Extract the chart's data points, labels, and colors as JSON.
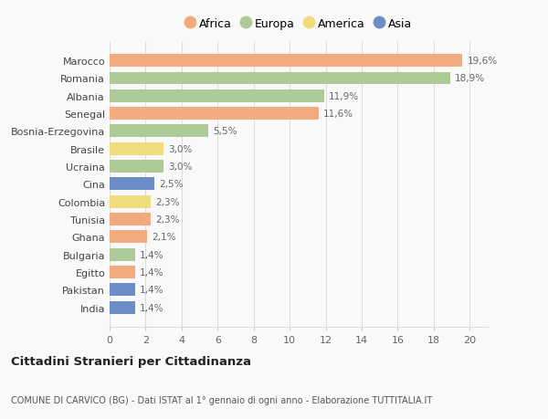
{
  "countries": [
    "Marocco",
    "Romania",
    "Albania",
    "Senegal",
    "Bosnia-Erzegovina",
    "Brasile",
    "Ucraina",
    "Cina",
    "Colombia",
    "Tunisia",
    "Ghana",
    "Bulgaria",
    "Egitto",
    "Pakistan",
    "India"
  ],
  "values": [
    19.6,
    18.9,
    11.9,
    11.6,
    5.5,
    3.0,
    3.0,
    2.5,
    2.3,
    2.3,
    2.1,
    1.4,
    1.4,
    1.4,
    1.4
  ],
  "labels": [
    "19,6%",
    "18,9%",
    "11,9%",
    "11,6%",
    "5,5%",
    "3,0%",
    "3,0%",
    "2,5%",
    "2,3%",
    "2,3%",
    "2,1%",
    "1,4%",
    "1,4%",
    "1,4%",
    "1,4%"
  ],
  "continents": [
    "Africa",
    "Europa",
    "Europa",
    "Africa",
    "Europa",
    "America",
    "Europa",
    "Asia",
    "America",
    "Africa",
    "Africa",
    "Europa",
    "Africa",
    "Asia",
    "Asia"
  ],
  "continent_colors": {
    "Africa": "#F2AA7E",
    "Europa": "#AECA96",
    "America": "#F2DC80",
    "Asia": "#6B8EC8"
  },
  "legend_order": [
    "Africa",
    "Europa",
    "America",
    "Asia"
  ],
  "xlim": [
    0,
    21
  ],
  "xticks": [
    0,
    2,
    4,
    6,
    8,
    10,
    12,
    14,
    16,
    18,
    20
  ],
  "title": "Cittadini Stranieri per Cittadinanza",
  "subtitle": "COMUNE DI CARVICO (BG) - Dati ISTAT al 1° gennaio di ogni anno - Elaborazione TUTTITALIA.IT",
  "bg_color": "#f9f9f9",
  "grid_color": "#dddddd",
  "bar_height": 0.72
}
